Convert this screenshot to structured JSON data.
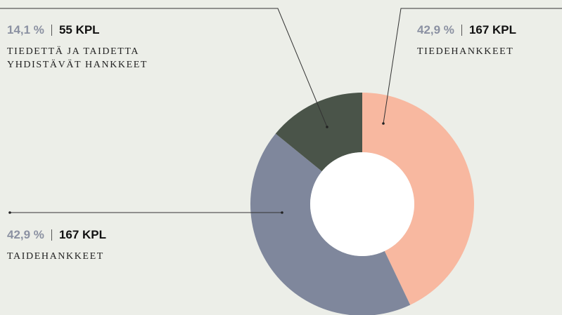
{
  "chart_data": {
    "type": "donut",
    "categories": [
      "TIEDEHANKKEET",
      "TAIDEHANKKEET",
      "TIEDETTÄ JA TAIDETTA YHDISTÄVÄT HANKKEET"
    ],
    "values": [
      42.9,
      42.9,
      14.1
    ],
    "value_labels": [
      "42,9 %",
      "42,9 %",
      "14,1 %"
    ],
    "counts": [
      167,
      167,
      55
    ],
    "count_labels": [
      "167 KPL",
      "167 KPL",
      "55 KPL"
    ],
    "colors": [
      "#f8b8a0",
      "#7f879c",
      "#4a5449"
    ]
  }
}
